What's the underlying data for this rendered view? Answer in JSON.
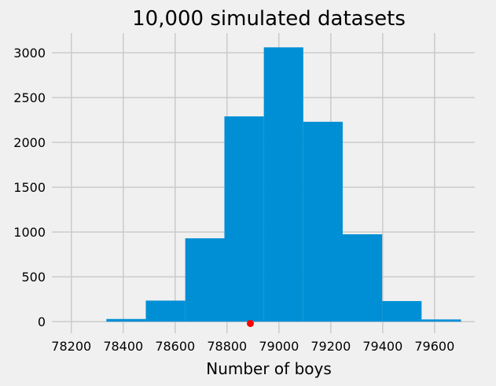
{
  "chart_data": {
    "type": "bar",
    "title": "10,000 simulated datasets",
    "xlabel": "Number of boys",
    "ylabel": "",
    "xlim": [
      78125,
      79755
    ],
    "ylim": [
      -130,
      3220
    ],
    "grid": true,
    "legend": "none",
    "xticks": [
      78200,
      78400,
      78600,
      78800,
      79000,
      79200,
      79400,
      79600
    ],
    "yticks": [
      0,
      500,
      1000,
      1500,
      2000,
      2500,
      3000
    ],
    "bins": [
      {
        "x0": 78335,
        "x1": 78487,
        "count": 30
      },
      {
        "x0": 78487,
        "x1": 78639,
        "count": 235
      },
      {
        "x0": 78639,
        "x1": 78790,
        "count": 930
      },
      {
        "x0": 78790,
        "x1": 78942,
        "count": 2290
      },
      {
        "x0": 78942,
        "x1": 79094,
        "count": 3060
      },
      {
        "x0": 79094,
        "x1": 79246,
        "count": 2230
      },
      {
        "x0": 79246,
        "x1": 79398,
        "count": 975
      },
      {
        "x0": 79398,
        "x1": 79550,
        "count": 230
      },
      {
        "x0": 79550,
        "x1": 79702,
        "count": 25
      }
    ],
    "observed_point": {
      "x": 78890,
      "y": -20
    },
    "colors": {
      "bars": "#008fd5",
      "point": "#ff0000",
      "background": "#f0f0f0",
      "grid": "#cbcbcb"
    }
  }
}
